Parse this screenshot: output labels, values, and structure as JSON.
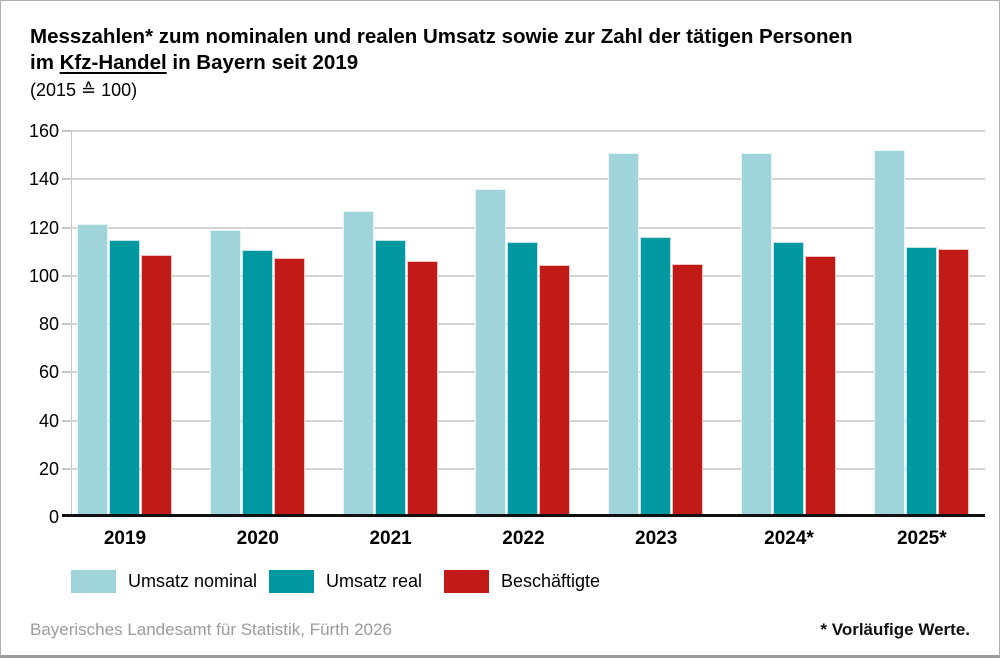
{
  "title": {
    "line1": "Messzahlen* zum nominalen und realen Umsatz sowie zur Zahl der tätigen Personen",
    "line2_pre": "im ",
    "line2_underline": "Kfz-Handel",
    "line2_post": " in Bayern seit 2019",
    "line3": "(2015 ≙ 100)"
  },
  "chart_data": {
    "type": "bar",
    "categories": [
      "2019",
      "2020",
      "2021",
      "2022",
      "2023",
      "2024*",
      "2025*"
    ],
    "series": [
      {
        "name": "Umsatz nominal",
        "color": "#9ed4da",
        "values": [
          121.5,
          119,
          127,
          136,
          151,
          151,
          152
        ]
      },
      {
        "name": "Umsatz real",
        "color": "#0098a1",
        "values": [
          115,
          110.5,
          115,
          114,
          116,
          114,
          112
        ]
      },
      {
        "name": "Beschäftigte",
        "color": "#c11a17",
        "values": [
          108.5,
          107.5,
          106,
          104.5,
          105,
          108,
          111
        ]
      }
    ],
    "ylim": [
      0,
      160
    ],
    "ytick_step": 20,
    "grid": true,
    "legend_position": "bottom",
    "colors": {
      "gridline": "#d4d4d4",
      "axis": "#c6c6c6",
      "baseline": "#111111"
    }
  },
  "footer": {
    "source": "Bayerisches Landesamt für Statistik, Fürth 2026",
    "note": "* Vorläufige Werte."
  }
}
